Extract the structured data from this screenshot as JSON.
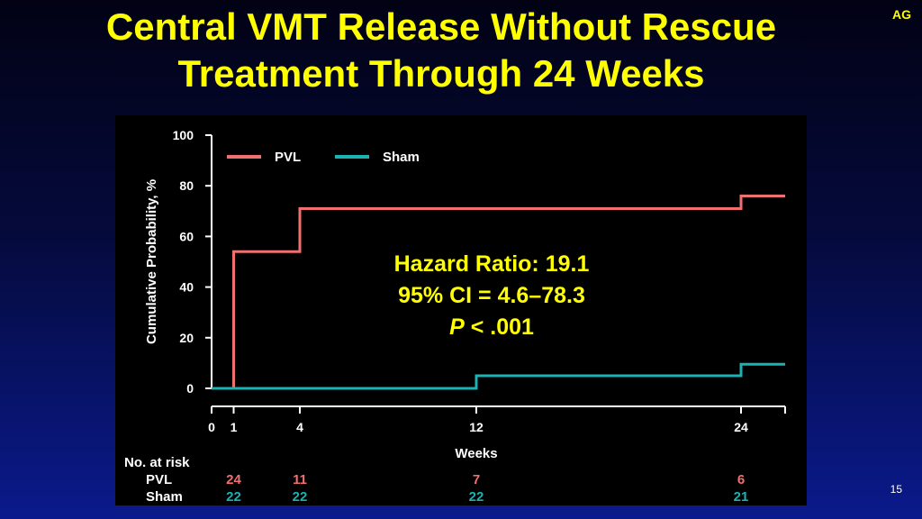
{
  "slide": {
    "title_line1": "Central VMT Release Without Rescue",
    "title_line2": "Treatment Through 24 Weeks",
    "corner_label": "AG",
    "slide_number": "15"
  },
  "chart_data": {
    "type": "line",
    "step": true,
    "xlabel": "Weeks",
    "ylabel": "Cumulative Probability, %",
    "xlim": [
      0,
      26
    ],
    "ylim": [
      0,
      100
    ],
    "xticks": [
      0,
      1,
      4,
      12,
      24
    ],
    "yticks": [
      0,
      20,
      40,
      60,
      80,
      100
    ],
    "series": [
      {
        "name": "PVL",
        "color": "#f07070",
        "x": [
          0,
          1,
          1,
          4,
          4,
          24,
          24,
          26
        ],
        "y": [
          0,
          0,
          54,
          54,
          71,
          71,
          76,
          76
        ]
      },
      {
        "name": "Sham",
        "color": "#1ab2b2",
        "x": [
          0,
          12,
          12,
          24,
          24,
          26
        ],
        "y": [
          0,
          0,
          5,
          5,
          9.5,
          9.5
        ]
      }
    ],
    "annotation": [
      "Hazard Ratio: 19.1",
      "95% CI = 4.6–78.3",
      "P",
      " < .001"
    ],
    "at_risk": {
      "header": "No. at risk",
      "weeks": [
        1,
        4,
        12,
        24
      ],
      "rows": [
        {
          "label": "PVL",
          "color": "#f07070",
          "values": [
            "24",
            "11",
            "7",
            "6"
          ]
        },
        {
          "label": "Sham",
          "color": "#1ab2b2",
          "values": [
            "22",
            "22",
            "22",
            "21"
          ]
        }
      ]
    }
  }
}
